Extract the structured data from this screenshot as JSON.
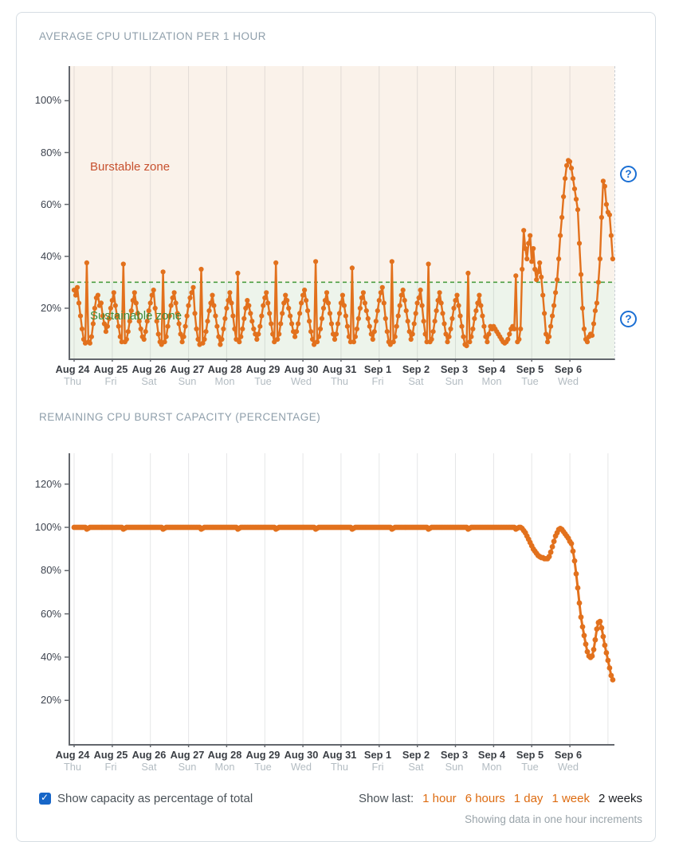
{
  "controls": {
    "checkbox": {
      "checked": true,
      "label": "Show capacity as percentage of total"
    },
    "show_last": {
      "label": "Show last:",
      "options": [
        "1 hour",
        "6 hours",
        "1 day",
        "1 week",
        "2 weeks"
      ],
      "selected": "2 weeks"
    },
    "footnote": "Showing data in one hour increments"
  },
  "colors": {
    "series_orange": "#e2711d",
    "link_orange": "#dd6b10",
    "burstable_bg": "#faf2ea",
    "sustainable_bg": "#edf4eb",
    "threshold_green": "#4c9e41",
    "burstable_text": "#c7512f",
    "sustainable_text": "#3d8a37",
    "help_blue": "#1a6fd4",
    "checkbox_blue": "#1766c8",
    "title_gray": "#8f9fab"
  },
  "chart_data": [
    {
      "id": "cpu-utilization",
      "type": "line",
      "title": "AVERAGE CPU UTILIZATION PER 1 HOUR",
      "x_increment_hours": 1,
      "x_tick_labels": [
        {
          "date": "Aug 24",
          "day": "Thu"
        },
        {
          "date": "Aug 25",
          "day": "Fri"
        },
        {
          "date": "Aug 26",
          "day": "Sat"
        },
        {
          "date": "Aug 27",
          "day": "Sun"
        },
        {
          "date": "Aug 28",
          "day": "Mon"
        },
        {
          "date": "Aug 29",
          "day": "Tue"
        },
        {
          "date": "Aug 30",
          "day": "Wed"
        },
        {
          "date": "Aug 31",
          "day": "Thu"
        },
        {
          "date": "Sep 1",
          "day": "Fri"
        },
        {
          "date": "Sep 2",
          "day": "Sat"
        },
        {
          "date": "Sep 3",
          "day": "Sun"
        },
        {
          "date": "Sep 4",
          "day": "Mon"
        },
        {
          "date": "Sep 5",
          "day": "Tue"
        },
        {
          "date": "Sep 6",
          "day": "Wed"
        }
      ],
      "y_ticks": [
        20,
        40,
        60,
        80,
        100
      ],
      "ylim": [
        0,
        113
      ],
      "threshold_pct": 30,
      "zones": {
        "burstable": "Burstable zone",
        "sustainable": "Sustainable zone"
      },
      "values": [
        27,
        25,
        28,
        22,
        17,
        12,
        8,
        6.5,
        37.5,
        7,
        6.5,
        9,
        14,
        20,
        24,
        25,
        21,
        22,
        17,
        14,
        11,
        13,
        16,
        20,
        23,
        26,
        21,
        17,
        13,
        9,
        7,
        37,
        7,
        8,
        11,
        15,
        19,
        23,
        26,
        22,
        18,
        15,
        12,
        9,
        8,
        11,
        15,
        19,
        22,
        25,
        27,
        20,
        15,
        10,
        7,
        6,
        34,
        7,
        9,
        13,
        17,
        21,
        24,
        26,
        22,
        18,
        14,
        10,
        7,
        9,
        13,
        17,
        21,
        24,
        26,
        28,
        18,
        12,
        8,
        6,
        35,
        6.5,
        8,
        11,
        15,
        19,
        22,
        25,
        21,
        17,
        13,
        9,
        6,
        8,
        12,
        16,
        20,
        23,
        26,
        22,
        17,
        12,
        8,
        33.5,
        7,
        9,
        12,
        16,
        20,
        23,
        21,
        18,
        15,
        12,
        10,
        8,
        10,
        13,
        17,
        21,
        24,
        26,
        22,
        18,
        14,
        10,
        7,
        37.5,
        8,
        10,
        14,
        18,
        22,
        25,
        23,
        20,
        17,
        14,
        11,
        9,
        11,
        14,
        18,
        22,
        25,
        27,
        23,
        19,
        15,
        11,
        8,
        6,
        38,
        7,
        9,
        12,
        16,
        20,
        23,
        26,
        22,
        18,
        14,
        10,
        8,
        10,
        14,
        18,
        22,
        25,
        21,
        17,
        13,
        9,
        7,
        35.5,
        7,
        9,
        12,
        16,
        20,
        24,
        26,
        22,
        19,
        16,
        13,
        10,
        8,
        11,
        15,
        19,
        23,
        26,
        28,
        22,
        16,
        11,
        7,
        6,
        38,
        7,
        9,
        13,
        17,
        21,
        25,
        27,
        23,
        19,
        15,
        11,
        8,
        10,
        14,
        18,
        22,
        24,
        27,
        21,
        15,
        10,
        7,
        37,
        7,
        8,
        11,
        15,
        19,
        23,
        26,
        22,
        18,
        14,
        10,
        7,
        9,
        12,
        16,
        20,
        23,
        25,
        21,
        17,
        13,
        9,
        6,
        5.5,
        33.5,
        7,
        9,
        12,
        16,
        19,
        22,
        25,
        21,
        17,
        13,
        9,
        7,
        10,
        13,
        12,
        13,
        12,
        11,
        10,
        9,
        8,
        7,
        6.5,
        7,
        8,
        10,
        12,
        13,
        12,
        32.5,
        7,
        8,
        12,
        35,
        50,
        43,
        39,
        45,
        48,
        38,
        43,
        35,
        31,
        34,
        37.5,
        32,
        25,
        18,
        10,
        7,
        9,
        13,
        17,
        21,
        26,
        31,
        39,
        48,
        55,
        63,
        70,
        75,
        77,
        76.5,
        74,
        70,
        66,
        62,
        58,
        45,
        33,
        20,
        12,
        8,
        7,
        9,
        10,
        9.5,
        14,
        19,
        22,
        30,
        39,
        55,
        69,
        67,
        60,
        57,
        56,
        48,
        39
      ]
    },
    {
      "id": "burst-capacity",
      "type": "line",
      "title": "REMAINING CPU BURST CAPACITY (PERCENTAGE)",
      "x_increment_hours": 1,
      "x_tick_labels": [
        {
          "date": "Aug 24",
          "day": "Thu"
        },
        {
          "date": "Aug 25",
          "day": "Fri"
        },
        {
          "date": "Aug 26",
          "day": "Sat"
        },
        {
          "date": "Aug 27",
          "day": "Sun"
        },
        {
          "date": "Aug 28",
          "day": "Mon"
        },
        {
          "date": "Aug 29",
          "day": "Tue"
        },
        {
          "date": "Aug 30",
          "day": "Wed"
        },
        {
          "date": "Aug 31",
          "day": "Thu"
        },
        {
          "date": "Sep 1",
          "day": "Fri"
        },
        {
          "date": "Sep 2",
          "day": "Sat"
        },
        {
          "date": "Sep 3",
          "day": "Sun"
        },
        {
          "date": "Sep 4",
          "day": "Mon"
        },
        {
          "date": "Sep 5",
          "day": "Tue"
        },
        {
          "date": "Sep 6",
          "day": "Wed"
        }
      ],
      "y_ticks": [
        20,
        40,
        60,
        80,
        100,
        120
      ],
      "ylim": [
        0,
        134
      ],
      "values": [
        100,
        100,
        100,
        100,
        100,
        100,
        100,
        100,
        99.2,
        99.6,
        100,
        100,
        100,
        100,
        100,
        100,
        100,
        100,
        100,
        100,
        100,
        100,
        100,
        100,
        100,
        100,
        100,
        100,
        100,
        100,
        100,
        99.2,
        99.6,
        100,
        100,
        100,
        100,
        100,
        100,
        100,
        100,
        100,
        100,
        100,
        100,
        100,
        100,
        100,
        100,
        100,
        100,
        100,
        100,
        100,
        100,
        100,
        99.2,
        99.6,
        100,
        100,
        100,
        100,
        100,
        100,
        100,
        100,
        100,
        100,
        100,
        100,
        100,
        100,
        100,
        100,
        100,
        100,
        100,
        100,
        100,
        100,
        99.2,
        99.6,
        100,
        100,
        100,
        100,
        100,
        100,
        100,
        100,
        100,
        100,
        100,
        100,
        100,
        100,
        100,
        100,
        100,
        100,
        100,
        100,
        100,
        99.2,
        99.6,
        100,
        100,
        100,
        100,
        100,
        100,
        100,
        100,
        100,
        100,
        100,
        100,
        100,
        100,
        100,
        100,
        100,
        100,
        100,
        100,
        100,
        100,
        99.2,
        99.6,
        100,
        100,
        100,
        100,
        100,
        100,
        100,
        100,
        100,
        100,
        100,
        100,
        100,
        100,
        100,
        100,
        100,
        100,
        100,
        100,
        100,
        100,
        100,
        99.2,
        99.6,
        100,
        100,
        100,
        100,
        100,
        100,
        100,
        100,
        100,
        100,
        100,
        100,
        100,
        100,
        100,
        100,
        100,
        100,
        100,
        100,
        100,
        99.2,
        99.6,
        100,
        100,
        100,
        100,
        100,
        100,
        100,
        100,
        100,
        100,
        100,
        100,
        100,
        100,
        100,
        100,
        100,
        100,
        100,
        100,
        100,
        100,
        100,
        99.2,
        99.6,
        100,
        100,
        100,
        100,
        100,
        100,
        100,
        100,
        100,
        100,
        100,
        100,
        100,
        100,
        100,
        100,
        100,
        100,
        100,
        100,
        100,
        99.2,
        99.6,
        100,
        100,
        100,
        100,
        100,
        100,
        100,
        100,
        100,
        100,
        100,
        100,
        100,
        100,
        100,
        100,
        100,
        100,
        100,
        100,
        100,
        100,
        100,
        99.2,
        99.6,
        100,
        100,
        100,
        100,
        100,
        100,
        100,
        100,
        100,
        100,
        100,
        100,
        100,
        100,
        100,
        100,
        100,
        100,
        100,
        100,
        100,
        100,
        100,
        100,
        100,
        100,
        100,
        100,
        99.2,
        99.6,
        100,
        100,
        99.5,
        98.5,
        97.5,
        96,
        94.5,
        93,
        91.5,
        90,
        89,
        88,
        87,
        86.5,
        86,
        86,
        85.5,
        85.5,
        85.5,
        86.5,
        88.5,
        91,
        93.5,
        96,
        97.5,
        99,
        99.5,
        99,
        98,
        97,
        96,
        95,
        93.5,
        92.5,
        89,
        84.5,
        78.5,
        72,
        65,
        58.5,
        54,
        50,
        46,
        42.5,
        40.5,
        39.8,
        40.5,
        43.5,
        48,
        53,
        56,
        56.5,
        53.5,
        49.5,
        45.5,
        42,
        38.5,
        35,
        31.5,
        29.5
      ]
    }
  ]
}
